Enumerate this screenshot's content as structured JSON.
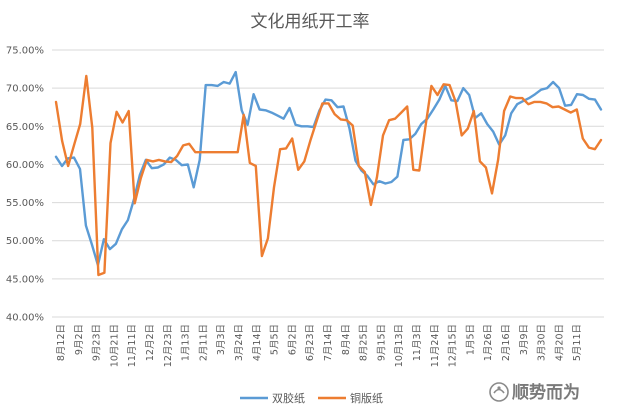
{
  "chart_data": {
    "type": "line",
    "title": "文化用纸开工率",
    "ylim": [
      0.4,
      0.75
    ],
    "ytick_labels": [
      "40.00%",
      "45.00%",
      "50.00%",
      "55.00%",
      "60.00%",
      "65.00%",
      "70.00%",
      "75.00%"
    ],
    "x_tick_labels": [
      "8月12日",
      "9月2日",
      "9月23日",
      "10月21日",
      "11月11日",
      "12月2日",
      "12月23日",
      "1月13日",
      "2月11日",
      "3月3日",
      "3月24日",
      "4月14日",
      "5月5日",
      "6月2日",
      "6月23日",
      "7月14日",
      "8月4日",
      "8月25日",
      "9月15日",
      "10月13日",
      "11月3日",
      "11月24日",
      "12月15日",
      "1月5日",
      "1月26日",
      "2月16日",
      "3月9日",
      "3月30日",
      "4月20日",
      "5月11日"
    ],
    "grid": "horizontal",
    "legend_position": "bottom",
    "series": [
      {
        "name": "双胶纸",
        "color": "#5B9BD5",
        "values": [
          61.0,
          59.8,
          60.8,
          60.9,
          59.4,
          52.0,
          49.5,
          46.8,
          50.2,
          48.9,
          49.6,
          51.5,
          52.7,
          55.4,
          58.6,
          60.6,
          59.5,
          59.6,
          60.0,
          60.9,
          60.6,
          59.9,
          60.0,
          57.0,
          60.6,
          70.4,
          70.4,
          70.3,
          70.8,
          70.6,
          72.1,
          67.1,
          65.2,
          69.2,
          67.2,
          67.1,
          66.8,
          66.4,
          66.0,
          67.4,
          65.2,
          65.0,
          65.0,
          64.9,
          67.1,
          68.5,
          68.4,
          67.5,
          67.6,
          64.7,
          60.5,
          59.2,
          58.5,
          57.4,
          57.8,
          57.5,
          57.7,
          58.4,
          63.2,
          63.3,
          64.0,
          65.3,
          66.0,
          67.2,
          68.5,
          70.3,
          68.4,
          68.3,
          70.0,
          69.1,
          66.1,
          66.7,
          65.3,
          64.3,
          62.6,
          63.8,
          66.7,
          67.9,
          68.3,
          68.7,
          69.2,
          69.8,
          70.0,
          70.8,
          70.0,
          67.7,
          67.8,
          69.2,
          69.1,
          68.6,
          68.5,
          67.2
        ]
      },
      {
        "name": "铜版纸",
        "color": "#ED7D31",
        "values": [
          68.2,
          63.1,
          59.8,
          62.6,
          65.3,
          71.6,
          64.8,
          45.5,
          45.8,
          62.8,
          66.9,
          65.5,
          67.0,
          54.9,
          58.2,
          60.6,
          60.4,
          60.6,
          60.4,
          60.3,
          61.1,
          62.5,
          62.7,
          61.6,
          61.6,
          61.6,
          61.6,
          61.6,
          61.6,
          61.6,
          61.6,
          66.5,
          60.2,
          59.8,
          48.0,
          50.3,
          57.0,
          62.0,
          62.1,
          63.4,
          59.3,
          60.4,
          63.1,
          65.6,
          68.0,
          68.0,
          66.6,
          65.9,
          65.8,
          65.1,
          59.8,
          59.0,
          54.7,
          58.3,
          63.8,
          65.8,
          66.0,
          66.8,
          67.6,
          59.3,
          59.2,
          64.9,
          70.3,
          69.1,
          70.5,
          70.4,
          68.2,
          63.8,
          64.7,
          67.0,
          60.4,
          59.6,
          56.2,
          60.6,
          67.0,
          68.9,
          68.7,
          68.7,
          67.9,
          68.2,
          68.2,
          68.0,
          67.5,
          67.6,
          67.2,
          66.8,
          67.2,
          63.4,
          62.2,
          62.0,
          63.2
        ]
      }
    ],
    "watermark": "顺势而为"
  }
}
